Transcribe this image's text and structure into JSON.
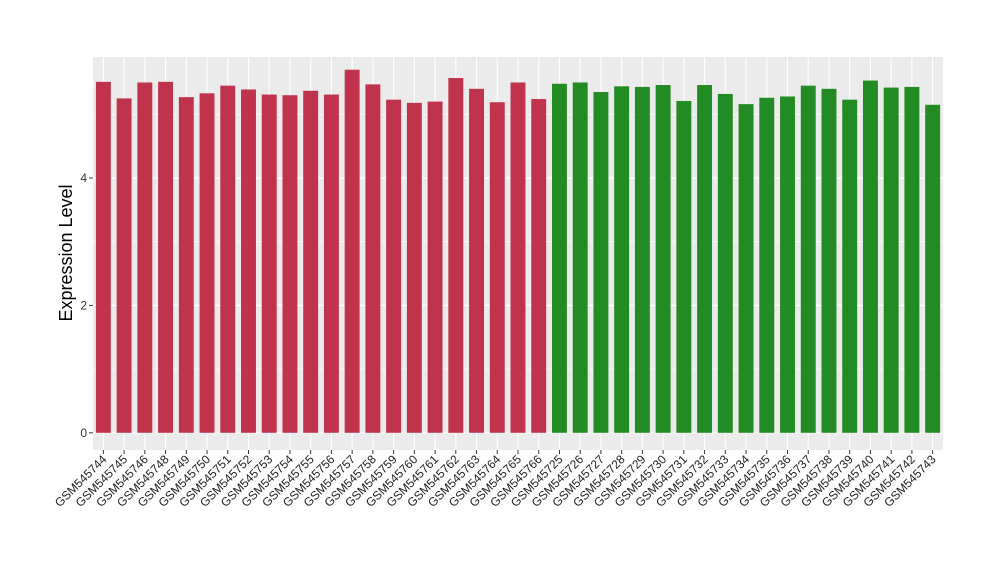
{
  "chart_data": {
    "type": "bar",
    "title": "",
    "xlabel": "",
    "ylabel": "Expression Level",
    "ylim": [
      -0.27,
      5.9
    ],
    "yticks": [
      0,
      2,
      4
    ],
    "grid": true,
    "legend": "none",
    "colors": {
      "group_a": "#c0334d",
      "group_b": "#238b23",
      "panel_bg": "#ebebeb",
      "grid": "#ffffff"
    },
    "categories": [
      "GSM545744",
      "GSM545745",
      "GSM545746",
      "GSM545748",
      "GSM545749",
      "GSM545750",
      "GSM545751",
      "GSM545752",
      "GSM545753",
      "GSM545754",
      "GSM545755",
      "GSM545756",
      "GSM545757",
      "GSM545758",
      "GSM545759",
      "GSM545760",
      "GSM545761",
      "GSM545762",
      "GSM545763",
      "GSM545764",
      "GSM545765",
      "GSM545766",
      "GSM545725",
      "GSM545726",
      "GSM545727",
      "GSM545728",
      "GSM545729",
      "GSM545730",
      "GSM545731",
      "GSM545732",
      "GSM545733",
      "GSM545734",
      "GSM545735",
      "GSM545736",
      "GSM545737",
      "GSM545738",
      "GSM545739",
      "GSM545740",
      "GSM545741",
      "GSM545742",
      "GSM545743"
    ],
    "values": [
      5.51,
      5.25,
      5.5,
      5.51,
      5.27,
      5.33,
      5.45,
      5.39,
      5.31,
      5.3,
      5.37,
      5.31,
      5.7,
      5.47,
      5.23,
      5.18,
      5.2,
      5.57,
      5.4,
      5.19,
      5.5,
      5.24,
      5.48,
      5.5,
      5.35,
      5.44,
      5.43,
      5.46,
      5.21,
      5.46,
      5.32,
      5.16,
      5.26,
      5.28,
      5.45,
      5.4,
      5.23,
      5.53,
      5.42,
      5.43,
      5.15
    ],
    "group_sizes": [
      22,
      19
    ]
  }
}
